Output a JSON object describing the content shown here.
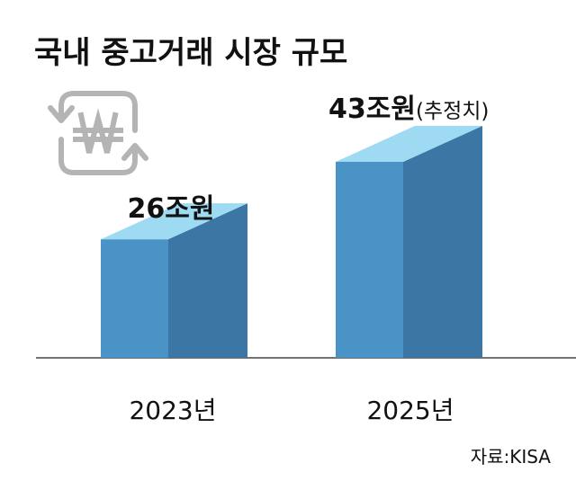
{
  "chart_data": {
    "type": "bar",
    "title": "국내 중고거래 시장 규모",
    "categories": [
      "2023년",
      "2025년"
    ],
    "values": [
      26,
      43
    ],
    "unit": "조원",
    "value_labels": [
      "26조원",
      "43조원"
    ],
    "annotations": [
      "(추정치)"
    ],
    "source": "자료:KISA",
    "xlabel": "",
    "ylabel": "",
    "ylim": [
      0,
      43
    ],
    "grid": false,
    "style": "3d-box",
    "icon": "won-currency-exchange-icon",
    "colors": {
      "front": "#4a93c6",
      "side": "#3b76a4",
      "top": "#9edbf3",
      "icon": "#b4b4b4",
      "text": "#111111"
    }
  }
}
